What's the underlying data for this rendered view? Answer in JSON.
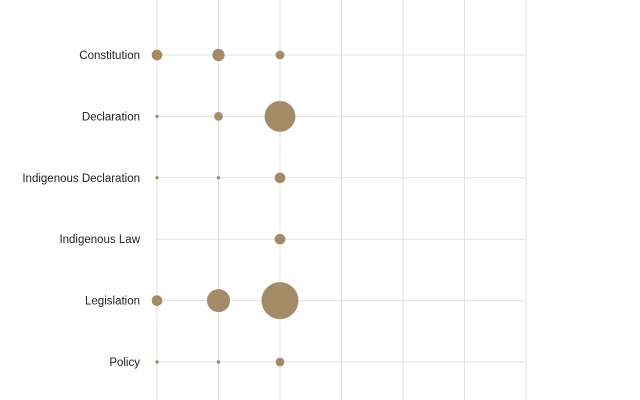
{
  "chart_data": {
    "type": "scatter",
    "title": "",
    "xlabel": "",
    "ylabel": "",
    "categories": [
      "Constitution",
      "Declaration",
      "Indigenous Declaration",
      "Indigenous Law",
      "Legislation",
      "Policy"
    ],
    "x_columns": 7,
    "grid": true,
    "legend": "none",
    "colors": {
      "bubble": "#a48a67",
      "grid": "#e2e2e2",
      "label": "#222222"
    },
    "partial_top_bubble": {
      "column": 2,
      "size": 3
    },
    "points": [
      {
        "category": "Constitution",
        "column": 0,
        "size": 3
      },
      {
        "category": "Constitution",
        "column": 1,
        "size": 4
      },
      {
        "category": "Constitution",
        "column": 2,
        "size": 2
      },
      {
        "category": "Declaration",
        "column": 0,
        "size": 0.3
      },
      {
        "category": "Declaration",
        "column": 1,
        "size": 2
      },
      {
        "category": "Declaration",
        "column": 2,
        "size": 25
      },
      {
        "category": "Indigenous Declaration",
        "column": 0,
        "size": 0.3
      },
      {
        "category": "Indigenous Declaration",
        "column": 1,
        "size": 0.3
      },
      {
        "category": "Indigenous Declaration",
        "column": 2,
        "size": 3
      },
      {
        "category": "Indigenous Law",
        "column": 2,
        "size": 3
      },
      {
        "category": "Legislation",
        "column": 0,
        "size": 3
      },
      {
        "category": "Legislation",
        "column": 1,
        "size": 14
      },
      {
        "category": "Legislation",
        "column": 2,
        "size": 36
      },
      {
        "category": "Policy",
        "column": 0,
        "size": 0.3
      },
      {
        "category": "Policy",
        "column": 1,
        "size": 0.3
      },
      {
        "category": "Policy",
        "column": 2,
        "size": 2
      }
    ]
  }
}
